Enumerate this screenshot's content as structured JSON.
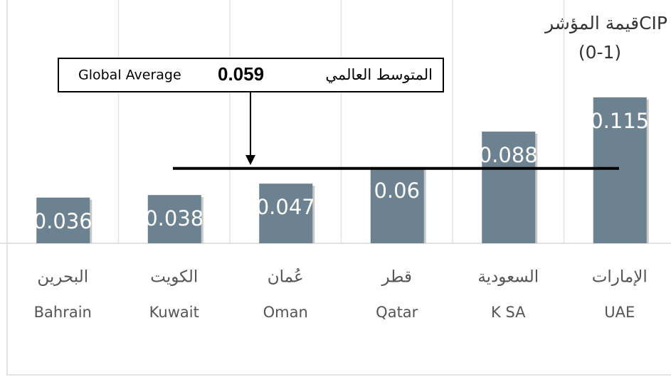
{
  "chart_data": {
    "type": "bar",
    "ylabel": "قيمة المؤشرCIP",
    "ylabel_range": "(0-1)",
    "categories": [
      [
        "البحرين",
        "Bahrain"
      ],
      [
        "الكويت",
        "Kuwait"
      ],
      [
        "عُمان",
        "Oman"
      ],
      [
        "قطر",
        "Qatar"
      ],
      [
        "السعودية",
        "K SA"
      ],
      [
        "الإمارات",
        "UAE"
      ]
    ],
    "values": [
      0.036,
      0.038,
      0.047,
      0.06,
      0.088,
      0.115
    ],
    "color": "#6c8290",
    "ylim": [
      0,
      0.19
    ],
    "grid": true,
    "average": {
      "label_ar": "المتوسط العالمي",
      "value": 0.059,
      "label_en": "Global Average",
      "color": "#000000"
    }
  }
}
